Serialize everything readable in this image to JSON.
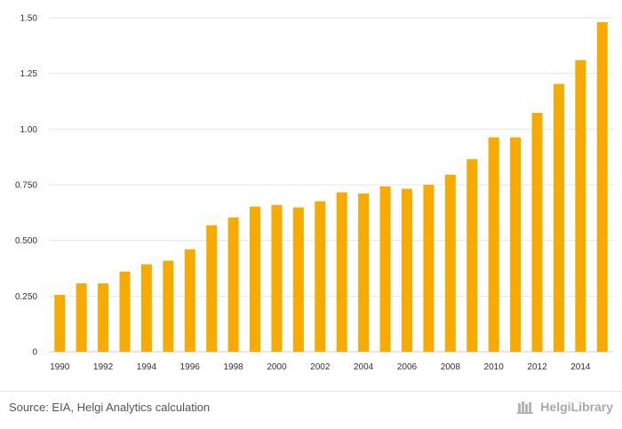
{
  "chart_data": {
    "type": "bar",
    "title": "",
    "xlabel": "",
    "ylabel": "",
    "categories": [
      "1990",
      "1991",
      "1992",
      "1993",
      "1994",
      "1995",
      "1996",
      "1997",
      "1998",
      "1999",
      "2000",
      "2001",
      "2002",
      "2003",
      "2004",
      "2005",
      "2006",
      "2007",
      "2008",
      "2009",
      "2010",
      "2011",
      "2012",
      "2013",
      "2014",
      "2015"
    ],
    "values": [
      0.255,
      0.307,
      0.307,
      0.36,
      0.393,
      0.409,
      0.46,
      0.568,
      0.603,
      0.652,
      0.659,
      0.648,
      0.676,
      0.716,
      0.711,
      0.743,
      0.732,
      0.75,
      0.795,
      0.865,
      0.963,
      0.963,
      1.073,
      1.203,
      1.31,
      1.48
    ],
    "ylim": [
      0,
      1.5
    ],
    "yticks": [
      0,
      0.25,
      0.5,
      0.75,
      1.0,
      1.25,
      1.5
    ],
    "ytick_labels": [
      "0",
      "0.250",
      "0.500",
      "0.750",
      "1.00",
      "1.25",
      "1.50"
    ],
    "xtick_labels": [
      "1990",
      "1992",
      "1994",
      "1996",
      "1998",
      "2000",
      "2002",
      "2004",
      "2006",
      "2008",
      "2010",
      "2012",
      "2014"
    ],
    "grid": true,
    "bar_color": "#f7ab00",
    "grid_color": "#e6e6e6"
  },
  "footer": {
    "source": "Source: EIA, Helgi Analytics calculation",
    "brand": "HelgiLibrary"
  }
}
